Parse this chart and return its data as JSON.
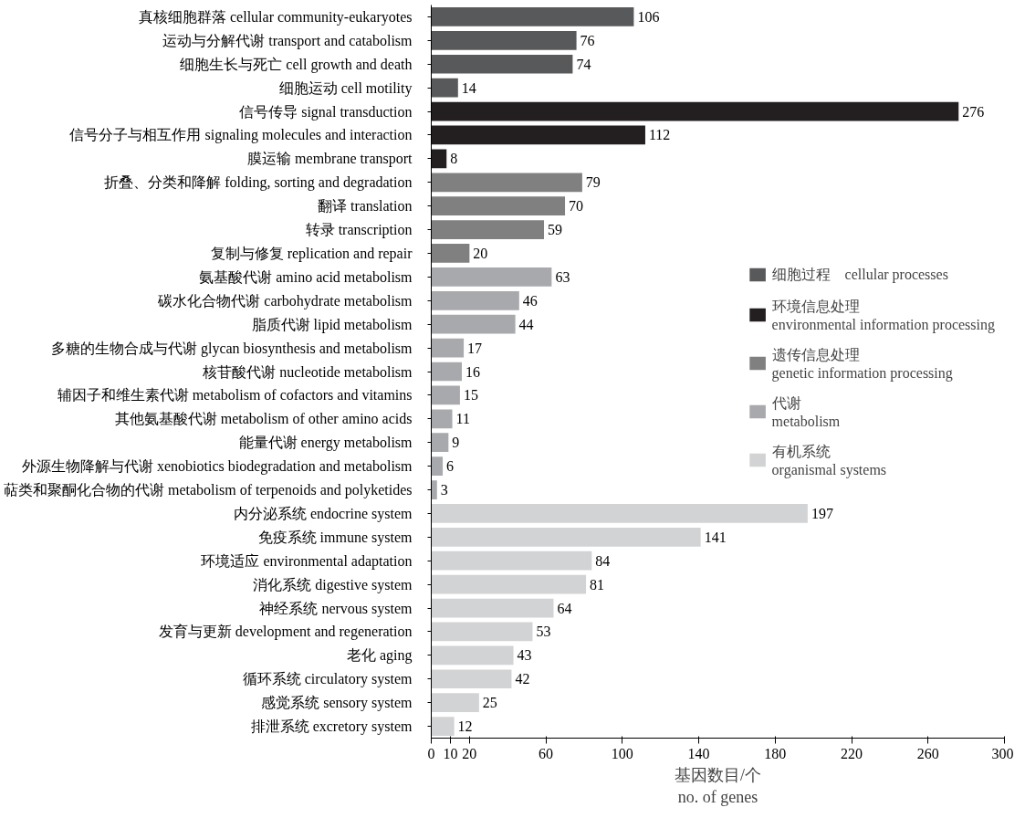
{
  "chart_data": {
    "type": "bar",
    "orientation": "horizontal",
    "categories": [
      "真核细胞群落    cellular community-eukaryotes",
      "运动与分解代谢    transport and catabolism",
      "细胞生长与死亡    cell growth and death",
      "细胞运动    cell motility",
      "信号传导    signal transduction",
      "信号分子与相互作用    signaling molecules and interaction",
      "膜运输    membrane transport",
      "折叠、分类和降解    folding, sorting and degradation",
      "翻译    translation",
      "转录    transcription",
      "复制与修复    replication and repair",
      "氨基酸代谢    amino acid metabolism",
      "碳水化合物代谢    carbohydrate metabolism",
      "脂质代谢    lipid metabolism",
      "多糖的生物合成与代谢    glycan biosynthesis and metabolism",
      "核苷酸代谢    nucleotide metabolism",
      "辅因子和维生素代谢    metabolism of cofactors and vitamins",
      "其他氨基酸代谢    metabolism of other amino acids",
      "能量代谢    energy metabolism",
      "外源生物降解与代谢    xenobiotics biodegradation and metabolism",
      "萜类和聚酮化合物的代谢    metabolism of terpenoids and polyketides",
      "内分泌系统    endocrine system",
      "免疫系统    immune system",
      "环境适应    environmental adaptation",
      "消化系统    digestive system",
      "神经系统    nervous system",
      "发育与更新    development and regeneration",
      "老化    aging",
      "循环系统    circulatory system",
      "感觉系统    sensory system",
      "排泄系统    excretory system"
    ],
    "series": [
      {
        "name": "细胞过程    cellular processes",
        "color": "#58595b",
        "values": [
          106,
          76,
          74,
          14,
          null,
          null,
          null,
          null,
          null,
          null,
          null,
          null,
          null,
          null,
          null,
          null,
          null,
          null,
          null,
          null,
          null,
          null,
          null,
          null,
          null,
          null,
          null,
          null,
          null,
          null,
          null
        ]
      },
      {
        "name": "环境信息处理\nenvironmental information processing",
        "color": "#231f20",
        "values": [
          null,
          null,
          null,
          null,
          276,
          112,
          8,
          null,
          null,
          null,
          null,
          null,
          null,
          null,
          null,
          null,
          null,
          null,
          null,
          null,
          null,
          null,
          null,
          null,
          null,
          null,
          null,
          null,
          null,
          null,
          null
        ]
      },
      {
        "name": "遗传信息处理\ngenetic information processing",
        "color": "#808080",
        "values": [
          null,
          null,
          null,
          null,
          null,
          null,
          null,
          79,
          70,
          59,
          20,
          null,
          null,
          null,
          null,
          null,
          null,
          null,
          null,
          null,
          null,
          null,
          null,
          null,
          null,
          null,
          null,
          null,
          null,
          null,
          null
        ]
      },
      {
        "name": "代谢\nmetabolism",
        "color": "#a7a9ac",
        "values": [
          null,
          null,
          null,
          null,
          null,
          null,
          null,
          null,
          null,
          null,
          null,
          63,
          46,
          44,
          17,
          16,
          15,
          11,
          9,
          6,
          3,
          null,
          null,
          null,
          null,
          null,
          null,
          null,
          null,
          null,
          null
        ]
      },
      {
        "name": "有机系统\norganismal systems",
        "color": "#d1d3d4",
        "values": [
          null,
          null,
          null,
          null,
          null,
          null,
          null,
          null,
          null,
          null,
          null,
          null,
          null,
          null,
          null,
          null,
          null,
          null,
          null,
          null,
          null,
          197,
          141,
          84,
          81,
          64,
          53,
          43,
          42,
          25,
          12
        ]
      }
    ],
    "xlabel": "基因数目/个\nno. of genes",
    "xlim": [
      0,
      300
    ],
    "xticks": [
      0,
      10,
      20,
      60,
      100,
      140,
      180,
      220,
      260,
      300
    ],
    "data_labels": true,
    "grid": false,
    "legend": "right"
  }
}
